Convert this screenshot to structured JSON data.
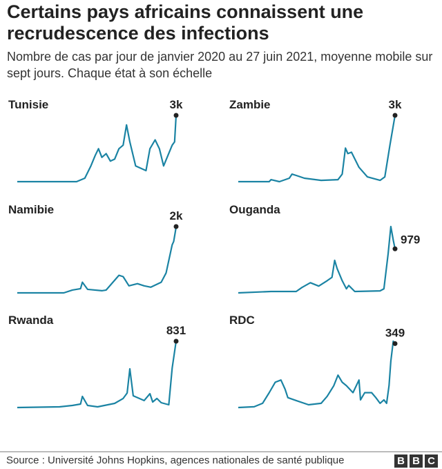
{
  "title": "Certains pays africains connaissent une recrudescence des infections",
  "subtitle": "Nombre de cas par jour de janvier 2020 au 27 juin 2021, moyenne mobile sur sept jours. Chaque état à son échelle",
  "source": "Source : Université Johns Hopkins, agences nationales de santé publique",
  "logo": [
    "B",
    "B",
    "C"
  ],
  "colors": {
    "line": "#1a83a3",
    "dot": "#222222"
  },
  "chart_data": {
    "type": "line",
    "x_range": [
      "2020-01-22",
      "2021-06-27"
    ],
    "independent_scales": true,
    "panels": [
      {
        "name": "Tunisie",
        "label": "3k",
        "points": [
          [
            "2020-01-22",
            0
          ],
          [
            "2020-08-04",
            0
          ],
          [
            "2020-08-31",
            155
          ],
          [
            "2020-09-20",
            713
          ],
          [
            "2020-10-04",
            1180
          ],
          [
            "2020-10-15",
            1490
          ],
          [
            "2020-10-26",
            1100
          ],
          [
            "2020-11-09",
            1270
          ],
          [
            "2020-11-23",
            930
          ],
          [
            "2020-12-07",
            1020
          ],
          [
            "2020-12-21",
            1490
          ],
          [
            "2021-01-04",
            1650
          ],
          [
            "2021-01-15",
            2570
          ],
          [
            "2021-01-26",
            1800
          ],
          [
            "2021-02-14",
            713
          ],
          [
            "2021-03-20",
            500
          ],
          [
            "2021-04-02",
            1490
          ],
          [
            "2021-04-19",
            1890
          ],
          [
            "2021-05-03",
            1490
          ],
          [
            "2021-05-17",
            713
          ],
          [
            "2021-05-28",
            1085
          ],
          [
            "2021-06-14",
            1650
          ],
          [
            "2021-06-22",
            1800
          ],
          [
            "2021-06-27",
            3000
          ]
        ]
      },
      {
        "name": "Zambie",
        "label": "3k",
        "points": [
          [
            "2020-01-22",
            0
          ],
          [
            "2020-05-04",
            0
          ],
          [
            "2020-05-10",
            90
          ],
          [
            "2020-06-07",
            0
          ],
          [
            "2020-07-10",
            155
          ],
          [
            "2020-07-19",
            340
          ],
          [
            "2020-08-02",
            280
          ],
          [
            "2020-08-29",
            155
          ],
          [
            "2020-10-24",
            60
          ],
          [
            "2020-12-19",
            90
          ],
          [
            "2021-01-02",
            340
          ],
          [
            "2021-01-13",
            1520
          ],
          [
            "2021-01-21",
            1270
          ],
          [
            "2021-02-02",
            1330
          ],
          [
            "2021-02-27",
            650
          ],
          [
            "2021-03-27",
            215
          ],
          [
            "2021-05-08",
            60
          ],
          [
            "2021-05-24",
            215
          ],
          [
            "2021-06-10",
            1650
          ],
          [
            "2021-06-27",
            3000
          ]
        ]
      },
      {
        "name": "Namibie",
        "label": "2k",
        "points": [
          [
            "2020-01-22",
            0
          ],
          [
            "2020-06-23",
            0
          ],
          [
            "2020-07-21",
            85
          ],
          [
            "2020-08-17",
            128
          ],
          [
            "2020-08-23",
            320
          ],
          [
            "2020-09-09",
            106
          ],
          [
            "2020-10-26",
            64
          ],
          [
            "2020-11-09",
            85
          ],
          [
            "2020-12-21",
            530
          ],
          [
            "2021-01-04",
            490
          ],
          [
            "2021-01-23",
            213
          ],
          [
            "2021-02-20",
            277
          ],
          [
            "2021-03-14",
            213
          ],
          [
            "2021-04-05",
            170
          ],
          [
            "2021-05-09",
            320
          ],
          [
            "2021-05-25",
            600
          ],
          [
            "2021-06-14",
            1450
          ],
          [
            "2021-06-19",
            1550
          ],
          [
            "2021-06-25",
            1870
          ],
          [
            "2021-06-27",
            2000
          ]
        ]
      },
      {
        "name": "Ouganda",
        "label": "979",
        "points": [
          [
            "2020-01-22",
            0
          ],
          [
            "2020-05-10",
            30
          ],
          [
            "2020-08-02",
            30
          ],
          [
            "2020-08-21",
            120
          ],
          [
            "2020-09-18",
            226
          ],
          [
            "2020-10-16",
            150
          ],
          [
            "2020-11-13",
            270
          ],
          [
            "2020-11-29",
            346
          ],
          [
            "2020-12-08",
            723
          ],
          [
            "2020-12-16",
            542
          ],
          [
            "2021-01-02",
            270
          ],
          [
            "2021-01-16",
            90
          ],
          [
            "2021-01-24",
            165
          ],
          [
            "2021-02-13",
            30
          ],
          [
            "2021-05-08",
            45
          ],
          [
            "2021-05-21",
            90
          ],
          [
            "2021-06-04",
            870
          ],
          [
            "2021-06-13",
            1475
          ],
          [
            "2021-06-21",
            1175
          ],
          [
            "2021-06-27",
            979
          ]
        ]
      },
      {
        "name": "Rwanda",
        "label": "831",
        "points": [
          [
            "2020-01-22",
            0
          ],
          [
            "2020-06-09",
            9
          ],
          [
            "2020-07-21",
            26
          ],
          [
            "2020-08-17",
            43
          ],
          [
            "2020-08-23",
            139
          ],
          [
            "2020-09-09",
            26
          ],
          [
            "2020-10-12",
            9
          ],
          [
            "2020-12-07",
            52
          ],
          [
            "2021-01-04",
            113
          ],
          [
            "2021-01-17",
            182
          ],
          [
            "2021-01-26",
            485
          ],
          [
            "2021-02-06",
            147
          ],
          [
            "2021-03-14",
            87
          ],
          [
            "2021-04-02",
            173
          ],
          [
            "2021-04-11",
            69
          ],
          [
            "2021-04-25",
            113
          ],
          [
            "2021-05-09",
            61
          ],
          [
            "2021-06-03",
            35
          ],
          [
            "2021-06-14",
            494
          ],
          [
            "2021-06-27",
            831
          ]
        ]
      },
      {
        "name": "RDC",
        "label": "349",
        "points": [
          [
            "2020-01-22",
            0
          ],
          [
            "2020-03-15",
            4
          ],
          [
            "2020-04-12",
            23
          ],
          [
            "2020-05-04",
            81
          ],
          [
            "2020-05-24",
            138
          ],
          [
            "2020-06-12",
            150
          ],
          [
            "2020-06-26",
            100
          ],
          [
            "2020-07-05",
            54
          ],
          [
            "2020-08-02",
            38
          ],
          [
            "2020-09-12",
            15
          ],
          [
            "2020-10-24",
            23
          ],
          [
            "2020-11-13",
            61
          ],
          [
            "2020-12-05",
            119
          ],
          [
            "2020-12-19",
            177
          ],
          [
            "2021-01-02",
            138
          ],
          [
            "2021-01-16",
            119
          ],
          [
            "2021-02-07",
            81
          ],
          [
            "2021-02-27",
            150
          ],
          [
            "2021-03-04",
            42
          ],
          [
            "2021-03-18",
            81
          ],
          [
            "2021-04-10",
            81
          ],
          [
            "2021-04-24",
            54
          ],
          [
            "2021-05-08",
            23
          ],
          [
            "2021-05-21",
            42
          ],
          [
            "2021-05-30",
            23
          ],
          [
            "2021-06-07",
            119
          ],
          [
            "2021-06-13",
            253
          ],
          [
            "2021-06-21",
            362
          ],
          [
            "2021-06-27",
            349
          ]
        ]
      }
    ]
  }
}
